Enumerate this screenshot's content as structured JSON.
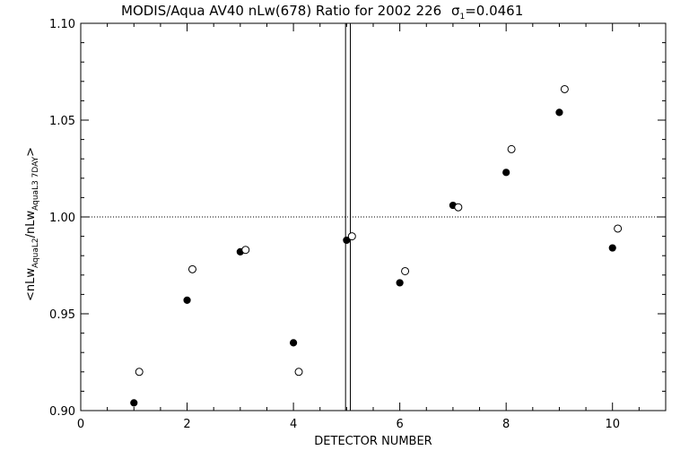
{
  "chart_data": {
    "type": "scatter",
    "title": "MODIS/Aqua AV40 nLw(678) Ratio for 2002 226",
    "sigma_label": "σ",
    "sigma_subscript": "1",
    "sigma_value": "=0.0461",
    "xlabel": "DETECTOR NUMBER",
    "ylabel": {
      "prefix": "<nLw",
      "sub1": "AquaL2",
      "middle": "/nLw",
      "sub2": "AquaL3 7DAY",
      "suffix": ">"
    },
    "xlim": [
      0,
      11
    ],
    "ylim": [
      0.9,
      1.1
    ],
    "x_ticks": [
      0,
      2,
      4,
      6,
      8,
      10
    ],
    "x_tick_labels": [
      "0",
      "2",
      "4",
      "6",
      "8",
      "10"
    ],
    "y_ticks": [
      0.9,
      0.95,
      1.0,
      1.05,
      1.1
    ],
    "y_tick_labels": [
      "0.90",
      "0.95",
      "1.00",
      "1.05",
      "1.10"
    ],
    "reference_line": 1.0,
    "vertical_lines": [
      4.98,
      5.07
    ],
    "series": [
      {
        "marker": "filled-circle",
        "x": [
          1,
          2,
          3,
          4,
          5,
          6,
          7,
          8,
          9,
          10
        ],
        "y": [
          0.904,
          0.957,
          0.982,
          0.935,
          0.988,
          0.966,
          1.006,
          1.023,
          1.054,
          0.984
        ]
      },
      {
        "marker": "open-circle",
        "x": [
          1.1,
          2.1,
          3.1,
          4.1,
          5.1,
          6.1,
          7.1,
          8.1,
          9.1,
          10.1
        ],
        "y": [
          0.92,
          0.973,
          0.983,
          0.92,
          0.99,
          0.972,
          1.005,
          1.035,
          1.066,
          0.994
        ]
      }
    ],
    "grid": false,
    "legend": "none"
  }
}
